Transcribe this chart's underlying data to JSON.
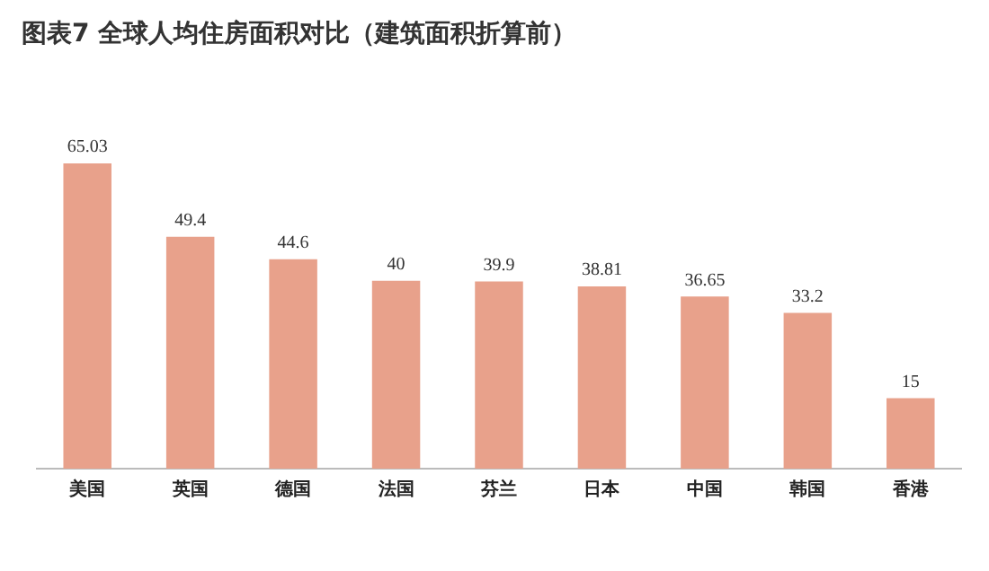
{
  "chart_data": {
    "type": "bar",
    "title": "图表7  全球人均住房面积对比（建筑面积折算前）",
    "categories": [
      "美国",
      "英国",
      "德国",
      "法国",
      "芬兰",
      "日本",
      "中国",
      "韩国",
      "香港"
    ],
    "values": [
      65.03,
      49.4,
      44.6,
      40,
      39.9,
      38.81,
      36.65,
      33.2,
      15
    ],
    "color": "#e8a18b",
    "data_labels": true,
    "grid": false,
    "legend": false
  }
}
